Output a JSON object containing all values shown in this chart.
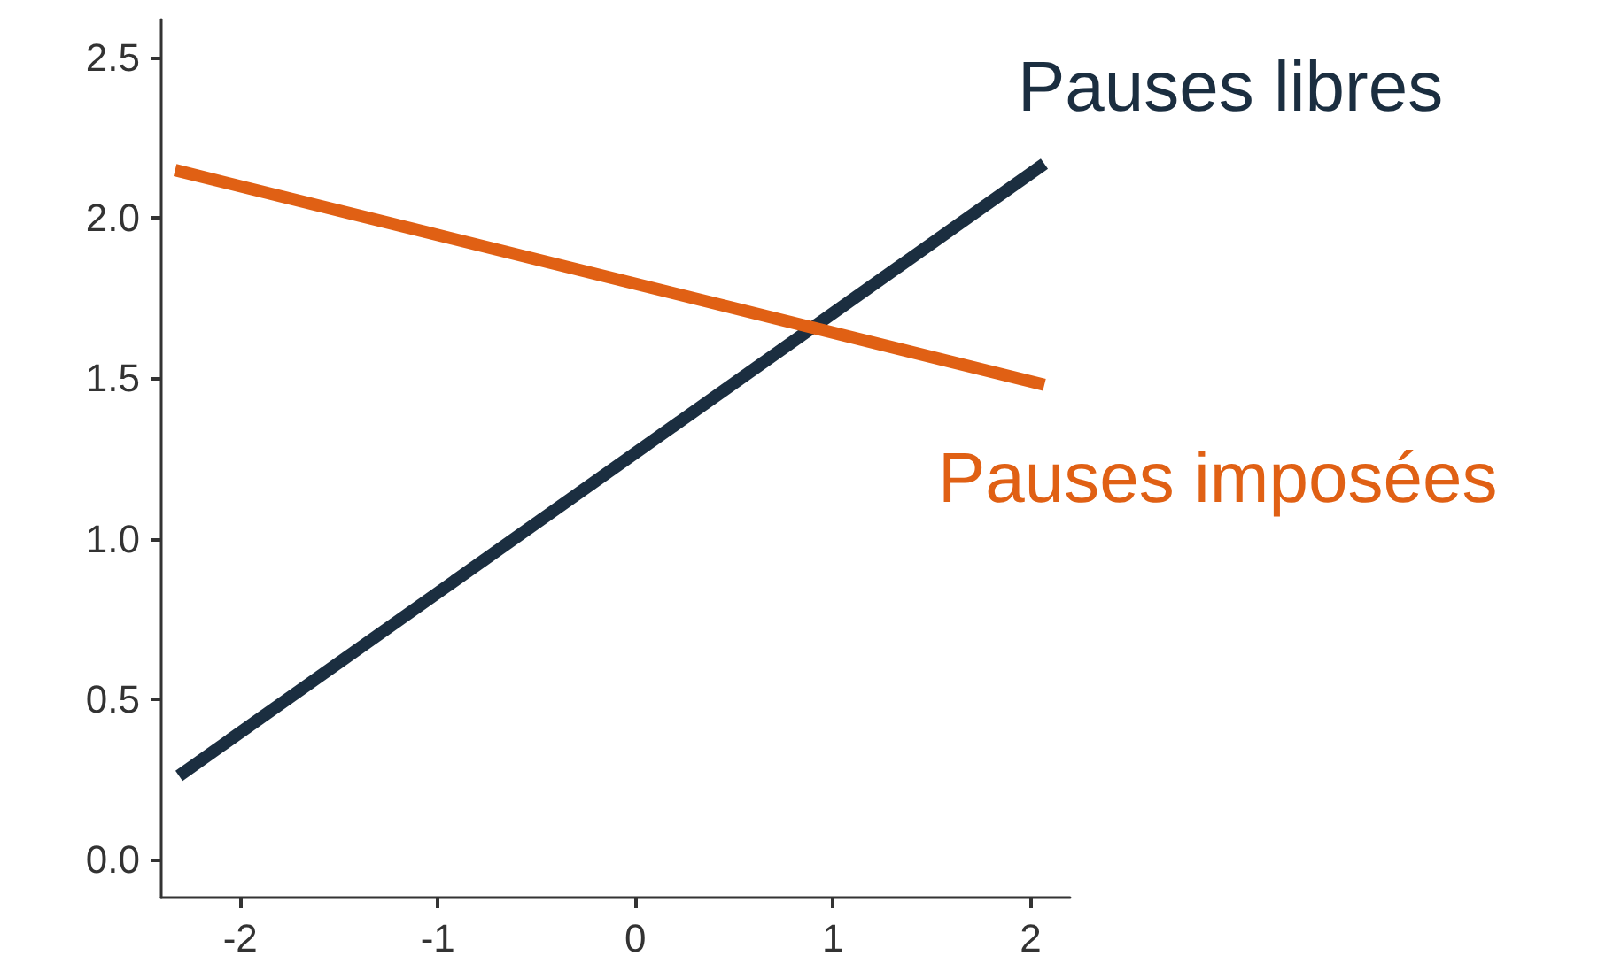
{
  "chart_data": {
    "type": "line",
    "xlim": [
      -2.4,
      2.2
    ],
    "xticks": [
      -2,
      -1,
      0,
      1,
      2
    ],
    "ylim": [
      -0.12,
      2.62
    ],
    "yticks": [
      {
        "value": 0,
        "label": "0.0"
      },
      0.5,
      {
        "value": 1,
        "label": "1.0"
      },
      1.5,
      {
        "value": 2,
        "label": "2.0"
      },
      2.5
    ],
    "x": [
      -2.31,
      2.07
    ],
    "series": [
      {
        "name": "Pauses libres",
        "color": "#1b2e40",
        "values": [
          0.26,
          2.17
        ]
      },
      {
        "name": "Pauses imposées",
        "color": "#e06014",
        "x": [
          -2.33,
          2.07
        ],
        "values": [
          2.15,
          1.48
        ]
      }
    ],
    "grid": false,
    "legend": false,
    "marker": "none",
    "line_style": "solid"
  }
}
